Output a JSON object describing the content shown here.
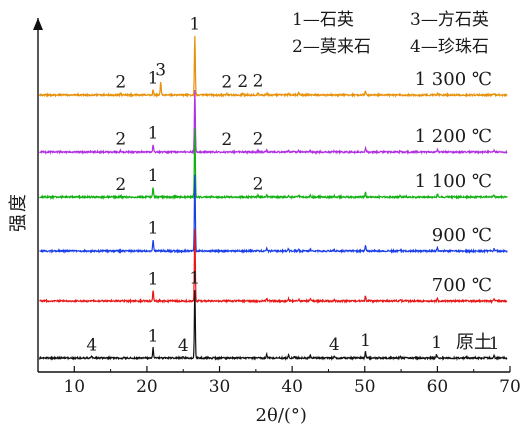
{
  "chart_data": {
    "type": "line",
    "xlabel": "2θ/(°)",
    "ylabel": "强度",
    "xlim": [
      5,
      70
    ],
    "xticks": [
      10,
      20,
      30,
      40,
      50,
      60,
      70
    ],
    "grid": false,
    "legend_placement": "top-right",
    "legend": [
      "1—石英",
      "3—方石英",
      "2—莫来石",
      "4—珍珠石"
    ],
    "series": [
      {
        "name": "1 300 ℃",
        "color": "#E8900A",
        "peaks": [
          [
            16.4,
            0.02
          ],
          [
            20.85,
            0.07
          ],
          [
            21.9,
            0.18
          ],
          [
            26.6,
            0.78
          ],
          [
            31.0,
            0.02
          ],
          [
            33.2,
            0.025
          ],
          [
            35.3,
            0.03
          ],
          [
            36.5,
            0.025
          ],
          [
            39.5,
            0.02
          ],
          [
            40.9,
            0.03
          ],
          [
            42.5,
            0.015
          ],
          [
            50.1,
            0.05
          ],
          [
            60.0,
            0.02
          ],
          [
            67.8,
            0.015
          ]
        ],
        "labels": [
          {
            "text": "2",
            "x": 16.4
          },
          {
            "text": "1",
            "x": 20.85
          },
          {
            "text": "3",
            "x": 21.9
          },
          {
            "text": "1",
            "x": 26.6
          },
          {
            "text": "2",
            "x": 31.0
          },
          {
            "text": "2",
            "x": 33.2
          },
          {
            "text": "2",
            "x": 35.3
          }
        ]
      },
      {
        "name": "1 200 ℃",
        "color": "#B030E0",
        "peaks": [
          [
            16.4,
            0.02
          ],
          [
            20.85,
            0.1
          ],
          [
            26.6,
            0.82
          ],
          [
            31.0,
            0.015
          ],
          [
            35.3,
            0.02
          ],
          [
            36.5,
            0.03
          ],
          [
            39.5,
            0.025
          ],
          [
            40.9,
            0.02
          ],
          [
            42.5,
            0.015
          ],
          [
            45.8,
            0.01
          ],
          [
            50.1,
            0.05
          ],
          [
            54.9,
            0.015
          ],
          [
            60.0,
            0.03
          ],
          [
            67.8,
            0.02
          ]
        ],
        "labels": [
          {
            "text": "2",
            "x": 16.4
          },
          {
            "text": "1",
            "x": 20.85
          },
          {
            "text": "2",
            "x": 31.0
          },
          {
            "text": "2",
            "x": 35.3
          }
        ]
      },
      {
        "name": "1 100 ℃",
        "color": "#12B012",
        "peaks": [
          [
            16.4,
            0.015
          ],
          [
            20.85,
            0.13
          ],
          [
            26.6,
            0.9
          ],
          [
            35.3,
            0.02
          ],
          [
            36.5,
            0.03
          ],
          [
            39.5,
            0.025
          ],
          [
            40.9,
            0.02
          ],
          [
            42.5,
            0.02
          ],
          [
            45.8,
            0.015
          ],
          [
            50.1,
            0.06
          ],
          [
            54.9,
            0.015
          ],
          [
            60.0,
            0.035
          ],
          [
            67.8,
            0.025
          ]
        ],
        "labels": [
          {
            "text": "2",
            "x": 16.4
          },
          {
            "text": "1",
            "x": 20.85
          },
          {
            "text": "2",
            "x": 35.3
          }
        ]
      },
      {
        "name": "900 ℃",
        "color": "#1A3EE8",
        "peaks": [
          [
            20.85,
            0.15
          ],
          [
            26.6,
            1.0
          ],
          [
            36.5,
            0.04
          ],
          [
            39.5,
            0.03
          ],
          [
            40.9,
            0.02
          ],
          [
            42.5,
            0.025
          ],
          [
            45.8,
            0.02
          ],
          [
            50.1,
            0.07
          ],
          [
            54.9,
            0.02
          ],
          [
            60.0,
            0.04
          ],
          [
            67.8,
            0.03
          ]
        ],
        "labels": [
          {
            "text": "1",
            "x": 20.85
          }
        ]
      },
      {
        "name": "700 ℃",
        "color": "#E81818",
        "peaks": [
          [
            20.85,
            0.14
          ],
          [
            26.6,
            0.95
          ],
          [
            36.5,
            0.04
          ],
          [
            39.5,
            0.03
          ],
          [
            40.9,
            0.02
          ],
          [
            42.5,
            0.025
          ],
          [
            45.8,
            0.02
          ],
          [
            50.1,
            0.07
          ],
          [
            54.9,
            0.02
          ],
          [
            60.0,
            0.04
          ],
          [
            67.8,
            0.03
          ]
        ],
        "labels": [
          {
            "text": "1",
            "x": 20.85
          }
        ]
      },
      {
        "name": "原土",
        "color": "#111111",
        "peaks": [
          [
            12.4,
            0.02
          ],
          [
            20.85,
            0.14
          ],
          [
            25.0,
            0.015
          ],
          [
            26.6,
            0.9
          ],
          [
            36.5,
            0.045
          ],
          [
            39.5,
            0.04
          ],
          [
            40.3,
            0.02
          ],
          [
            42.5,
            0.03
          ],
          [
            45.8,
            0.025
          ],
          [
            50.1,
            0.08
          ],
          [
            54.9,
            0.03
          ],
          [
            59.9,
            0.05
          ],
          [
            64.0,
            0.02
          ],
          [
            67.8,
            0.04
          ]
        ],
        "labels": [
          {
            "text": "4",
            "x": 12.4
          },
          {
            "text": "1",
            "x": 20.85
          },
          {
            "text": "4",
            "x": 25.0
          },
          {
            "text": "1",
            "x": 26.6
          },
          {
            "text": "4",
            "x": 45.8
          },
          {
            "text": "1",
            "x": 50.1
          },
          {
            "text": "1",
            "x": 59.9
          },
          {
            "text": "1",
            "x": 67.8
          }
        ]
      }
    ]
  }
}
